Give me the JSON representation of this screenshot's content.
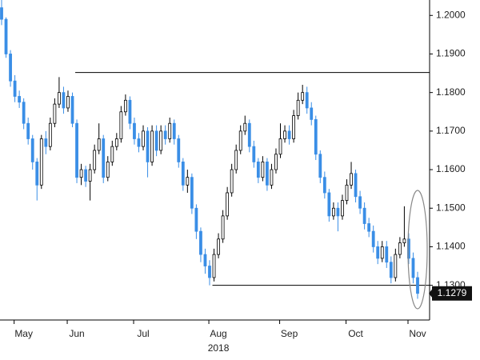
{
  "chart_data": {
    "type": "candlestick",
    "categories": [
      null,
      null,
      null,
      null,
      null,
      "May",
      null,
      null,
      null,
      null,
      null,
      null,
      null,
      null,
      null,
      null,
      null,
      "Jun",
      null,
      null,
      null,
      null,
      null,
      null,
      null,
      null,
      null,
      null,
      null,
      null,
      null,
      null,
      "Jul",
      null,
      null,
      null,
      null,
      null,
      null,
      null,
      null,
      null,
      null,
      null,
      null,
      null,
      null,
      null,
      null,
      "Aug",
      null,
      null,
      null,
      null,
      null,
      null,
      null,
      null,
      null,
      null,
      null,
      null,
      null,
      null,
      null,
      "Sep",
      null,
      null,
      null,
      null,
      null,
      null,
      null,
      null,
      null,
      null,
      null,
      null,
      null,
      null,
      "Oct",
      null,
      null,
      null,
      null,
      null,
      null,
      null,
      null,
      null,
      null,
      null,
      null,
      null,
      "Nov"
    ],
    "year_label": "2018",
    "open": [
      1.202,
      1.199,
      1.19,
      1.183,
      1.179,
      1.1775,
      1.172,
      1.168,
      1.162,
      1.156,
      1.168,
      1.166,
      1.172,
      1.177,
      1.18,
      1.176,
      1.179,
      1.172,
      1.158,
      1.16,
      1.157,
      1.16,
      1.165,
      1.168,
      1.158,
      1.162,
      1.166,
      1.168,
      1.175,
      1.178,
      1.172,
      1.168,
      1.166,
      1.17,
      1.162,
      1.17,
      1.165,
      1.17,
      1.168,
      1.172,
      1.168,
      1.162,
      1.156,
      1.158,
      1.15,
      1.144,
      1.138,
      1.135,
      1.132,
      1.138,
      1.142,
      1.148,
      1.154,
      1.16,
      1.165,
      1.17,
      1.172,
      1.166,
      1.162,
      1.158,
      1.162,
      1.156,
      1.16,
      1.164,
      1.168,
      1.17,
      1.168,
      1.174,
      1.178,
      1.18,
      1.176,
      1.173,
      1.164,
      1.158,
      1.154,
      1.148,
      1.15,
      1.148,
      1.152,
      1.156,
      1.159,
      1.153,
      1.15,
      1.146,
      1.144,
      1.14,
      1.137,
      1.14,
      1.136,
      1.132,
      1.138,
      1.141,
      1.142,
      1.137,
      1.132
    ],
    "high": [
      1.204,
      1.1995,
      1.191,
      1.1845,
      1.1805,
      1.1785,
      1.1735,
      1.169,
      1.163,
      1.169,
      1.17,
      1.1735,
      1.1785,
      1.184,
      1.1815,
      1.1805,
      1.18,
      1.173,
      1.1615,
      1.161,
      1.1615,
      1.1665,
      1.172,
      1.169,
      1.1635,
      1.1675,
      1.1695,
      1.1765,
      1.1795,
      1.179,
      1.1735,
      1.1695,
      1.1715,
      1.171,
      1.1715,
      1.1715,
      1.1715,
      1.1715,
      1.1735,
      1.173,
      1.169,
      1.163,
      1.16,
      1.159,
      1.151,
      1.145,
      1.1395,
      1.1365,
      1.1395,
      1.1435,
      1.1495,
      1.1555,
      1.1615,
      1.1665,
      1.1715,
      1.174,
      1.173,
      1.1675,
      1.163,
      1.1635,
      1.163,
      1.1615,
      1.1655,
      1.172,
      1.1715,
      1.1715,
      1.1755,
      1.18,
      1.182,
      1.1815,
      1.1775,
      1.174,
      1.165,
      1.1595,
      1.155,
      1.1515,
      1.1515,
      1.1535,
      1.1575,
      1.162,
      1.16,
      1.1545,
      1.1515,
      1.1475,
      1.1455,
      1.1415,
      1.1415,
      1.1415,
      1.1375,
      1.1395,
      1.1425,
      1.1505,
      1.1435,
      1.1385,
      1.1335
    ],
    "low": [
      1.1975,
      1.189,
      1.1815,
      1.1775,
      1.176,
      1.1705,
      1.1665,
      1.16,
      1.152,
      1.155,
      1.164,
      1.165,
      1.171,
      1.176,
      1.1745,
      1.175,
      1.171,
      1.1565,
      1.156,
      1.1555,
      1.152,
      1.159,
      1.164,
      1.1565,
      1.157,
      1.161,
      1.165,
      1.167,
      1.174,
      1.1705,
      1.1665,
      1.1645,
      1.165,
      1.158,
      1.161,
      1.1635,
      1.164,
      1.1665,
      1.167,
      1.1665,
      1.1605,
      1.1545,
      1.154,
      1.1485,
      1.142,
      1.136,
      1.133,
      1.13,
      1.131,
      1.137,
      1.141,
      1.147,
      1.153,
      1.159,
      1.164,
      1.169,
      1.1645,
      1.1605,
      1.1565,
      1.157,
      1.1545,
      1.155,
      1.159,
      1.163,
      1.167,
      1.1665,
      1.167,
      1.173,
      1.177,
      1.1745,
      1.1715,
      1.1625,
      1.1565,
      1.1525,
      1.1465,
      1.147,
      1.144,
      1.147,
      1.151,
      1.155,
      1.1515,
      1.1485,
      1.1445,
      1.1425,
      1.1385,
      1.1355,
      1.136,
      1.1345,
      1.1305,
      1.131,
      1.137,
      1.14,
      1.1355,
      1.1305,
      1.1265
    ],
    "close": [
      1.199,
      1.19,
      1.183,
      1.179,
      1.1775,
      1.172,
      1.168,
      1.162,
      1.156,
      1.168,
      1.166,
      1.172,
      1.177,
      1.18,
      1.176,
      1.179,
      1.172,
      1.158,
      1.16,
      1.157,
      1.16,
      1.165,
      1.168,
      1.158,
      1.162,
      1.166,
      1.168,
      1.175,
      1.178,
      1.172,
      1.168,
      1.166,
      1.17,
      1.162,
      1.17,
      1.165,
      1.17,
      1.168,
      1.172,
      1.168,
      1.162,
      1.156,
      1.158,
      1.15,
      1.144,
      1.138,
      1.135,
      1.132,
      1.138,
      1.142,
      1.148,
      1.154,
      1.16,
      1.165,
      1.17,
      1.172,
      1.166,
      1.162,
      1.158,
      1.162,
      1.156,
      1.16,
      1.164,
      1.168,
      1.17,
      1.168,
      1.174,
      1.178,
      1.18,
      1.176,
      1.173,
      1.164,
      1.158,
      1.154,
      1.148,
      1.15,
      1.148,
      1.152,
      1.156,
      1.159,
      1.153,
      1.15,
      1.146,
      1.144,
      1.14,
      1.137,
      1.14,
      1.136,
      1.132,
      1.138,
      1.141,
      1.142,
      1.137,
      1.132,
      1.1279
    ],
    "up_color": "#ffffff",
    "down_color": "#3a8ee6",
    "outline_color": "#000000",
    "levels": [
      1.1852,
      1.13
    ],
    "ylim": [
      1.121,
      1.204
    ],
    "yticks": [
      {
        "value": 1.2,
        "label": "1.2000"
      },
      {
        "value": 1.19,
        "label": "1.1900"
      },
      {
        "value": 1.18,
        "label": "1.1800"
      },
      {
        "value": 1.17,
        "label": "1.1700"
      },
      {
        "value": 1.16,
        "label": "1.1600"
      },
      {
        "value": 1.15,
        "label": "1.1500"
      },
      {
        "value": 1.14,
        "label": "1.1400"
      },
      {
        "value": 1.13,
        "label": "1.1300"
      }
    ]
  }
}
